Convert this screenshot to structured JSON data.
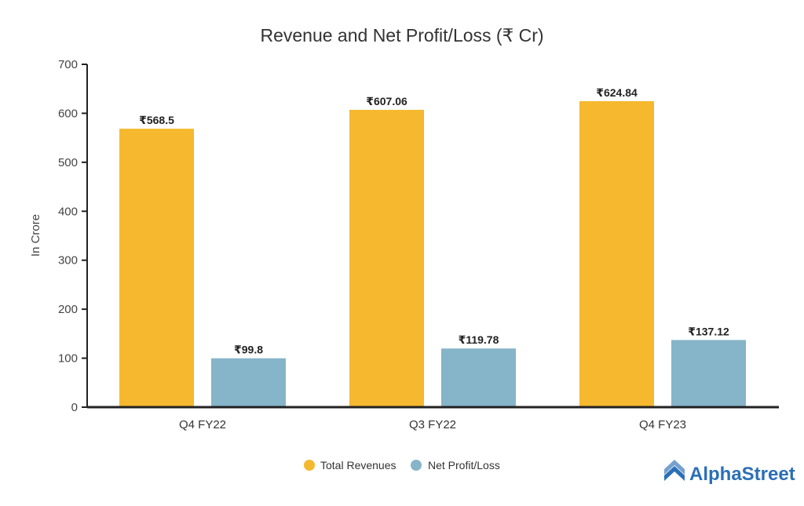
{
  "chart_data": {
    "type": "bar",
    "title": "Revenue and Net Profit/Loss (₹ Cr)",
    "xlabel": "",
    "ylabel": "In Crore",
    "ylim": [
      0,
      700
    ],
    "yticks": [
      0,
      100,
      200,
      300,
      400,
      500,
      600,
      700
    ],
    "grid": false,
    "categories": [
      "Q4 FY22",
      "Q3 FY22",
      "Q4 FY23"
    ],
    "series": [
      {
        "name": "Total Revenues",
        "color": "#F5B82E",
        "values": [
          568.5,
          607.06,
          624.84
        ],
        "labels": [
          "₹568.5",
          "₹607.06",
          "₹624.84"
        ]
      },
      {
        "name": "Net Profit/Loss",
        "color": "#86B4C8",
        "values": [
          99.8,
          119.78,
          137.12
        ],
        "labels": [
          "₹99.8",
          "₹119.78",
          "₹137.12"
        ]
      }
    ],
    "legend_position": "bottom-center"
  },
  "brand": {
    "name": "AlphaStreet",
    "color": "#2B6FB6",
    "icon": "alphastreet-logo-icon"
  }
}
